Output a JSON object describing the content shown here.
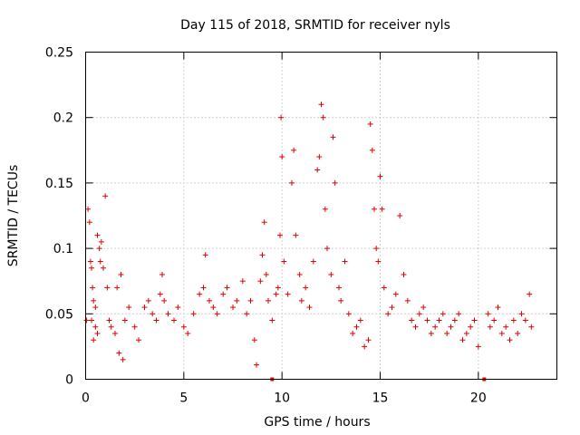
{
  "chart_data": {
    "type": "scatter",
    "title": "Day 115 of 2018, SRMTID for receiver nyls",
    "xlabel": "GPS time / hours",
    "ylabel": "SRMTID / TECUs",
    "xlim": [
      0,
      24
    ],
    "ylim": [
      0,
      0.25
    ],
    "xticks": [
      0,
      5,
      10,
      15,
      20
    ],
    "xtick_labels": [
      "0",
      "5",
      "10",
      "15",
      "20"
    ],
    "yticks": [
      0,
      0.05,
      0.1,
      0.15,
      0.2,
      0.25
    ],
    "ytick_labels": [
      "0",
      "0.05",
      "0.1",
      "0.15",
      "0.2",
      "0.25"
    ],
    "grid": true,
    "marker": "+",
    "color": "#e00000",
    "gap_markers_x": [
      9.5,
      20.3
    ],
    "series": [
      {
        "name": "SRMTID",
        "points": [
          [
            0.05,
            0.045
          ],
          [
            0.12,
            0.13
          ],
          [
            0.2,
            0.12
          ],
          [
            0.25,
            0.09
          ],
          [
            0.3,
            0.085
          ],
          [
            0.35,
            0.07
          ],
          [
            0.4,
            0.06
          ],
          [
            0.5,
            0.055
          ],
          [
            0.6,
            0.11
          ],
          [
            0.7,
            0.1
          ],
          [
            0.75,
            0.09
          ],
          [
            0.8,
            0.105
          ],
          [
            0.9,
            0.085
          ],
          [
            1.0,
            0.14
          ],
          [
            0.5,
            0.04
          ],
          [
            0.6,
            0.035
          ],
          [
            0.4,
            0.03
          ],
          [
            0.3,
            0.045
          ],
          [
            1.1,
            0.07
          ],
          [
            1.2,
            0.045
          ],
          [
            1.3,
            0.04
          ],
          [
            1.5,
            0.035
          ],
          [
            1.7,
            0.02
          ],
          [
            1.9,
            0.015
          ],
          [
            1.6,
            0.07
          ],
          [
            1.8,
            0.08
          ],
          [
            2.0,
            0.045
          ],
          [
            2.2,
            0.055
          ],
          [
            2.5,
            0.04
          ],
          [
            2.7,
            0.03
          ],
          [
            3.0,
            0.055
          ],
          [
            3.2,
            0.06
          ],
          [
            3.4,
            0.05
          ],
          [
            3.6,
            0.045
          ],
          [
            3.8,
            0.065
          ],
          [
            3.9,
            0.08
          ],
          [
            4.0,
            0.06
          ],
          [
            4.2,
            0.05
          ],
          [
            4.5,
            0.045
          ],
          [
            4.7,
            0.055
          ],
          [
            5.0,
            0.04
          ],
          [
            5.2,
            0.035
          ],
          [
            5.5,
            0.05
          ],
          [
            5.8,
            0.065
          ],
          [
            6.0,
            0.07
          ],
          [
            6.1,
            0.095
          ],
          [
            6.3,
            0.06
          ],
          [
            6.5,
            0.055
          ],
          [
            6.7,
            0.05
          ],
          [
            7.0,
            0.065
          ],
          [
            7.2,
            0.07
          ],
          [
            7.5,
            0.055
          ],
          [
            7.7,
            0.06
          ],
          [
            8.0,
            0.075
          ],
          [
            8.2,
            0.05
          ],
          [
            8.4,
            0.06
          ],
          [
            8.6,
            0.03
          ],
          [
            8.7,
            0.011
          ],
          [
            8.9,
            0.075
          ],
          [
            9.0,
            0.095
          ],
          [
            9.1,
            0.12
          ],
          [
            9.2,
            0.08
          ],
          [
            9.3,
            0.06
          ],
          [
            9.5,
            0.045
          ],
          [
            9.7,
            0.065
          ],
          [
            9.8,
            0.07
          ],
          [
            9.9,
            0.11
          ],
          [
            10.0,
            0.17
          ],
          [
            9.95,
            0.2
          ],
          [
            10.1,
            0.09
          ],
          [
            10.3,
            0.065
          ],
          [
            10.5,
            0.15
          ],
          [
            10.6,
            0.175
          ],
          [
            10.7,
            0.11
          ],
          [
            10.9,
            0.08
          ],
          [
            11.0,
            0.06
          ],
          [
            11.2,
            0.07
          ],
          [
            11.4,
            0.055
          ],
          [
            11.6,
            0.09
          ],
          [
            11.8,
            0.16
          ],
          [
            11.9,
            0.17
          ],
          [
            12.0,
            0.21
          ],
          [
            12.1,
            0.2
          ],
          [
            12.2,
            0.13
          ],
          [
            12.3,
            0.1
          ],
          [
            12.5,
            0.08
          ],
          [
            12.6,
            0.185
          ],
          [
            12.7,
            0.15
          ],
          [
            12.9,
            0.07
          ],
          [
            13.0,
            0.06
          ],
          [
            13.2,
            0.09
          ],
          [
            13.4,
            0.05
          ],
          [
            13.6,
            0.035
          ],
          [
            13.8,
            0.04
          ],
          [
            14.0,
            0.045
          ],
          [
            14.2,
            0.025
          ],
          [
            14.4,
            0.03
          ],
          [
            14.5,
            0.195
          ],
          [
            14.6,
            0.175
          ],
          [
            14.7,
            0.13
          ],
          [
            14.8,
            0.1
          ],
          [
            14.9,
            0.09
          ],
          [
            15.0,
            0.155
          ],
          [
            15.1,
            0.13
          ],
          [
            15.2,
            0.07
          ],
          [
            15.4,
            0.05
          ],
          [
            15.6,
            0.055
          ],
          [
            15.8,
            0.065
          ],
          [
            16.0,
            0.125
          ],
          [
            16.2,
            0.08
          ],
          [
            16.4,
            0.06
          ],
          [
            16.6,
            0.045
          ],
          [
            16.8,
            0.04
          ],
          [
            17.0,
            0.05
          ],
          [
            17.2,
            0.055
          ],
          [
            17.4,
            0.045
          ],
          [
            17.6,
            0.035
          ],
          [
            17.8,
            0.04
          ],
          [
            18.0,
            0.045
          ],
          [
            18.2,
            0.05
          ],
          [
            18.4,
            0.035
          ],
          [
            18.6,
            0.04
          ],
          [
            18.8,
            0.045
          ],
          [
            19.0,
            0.05
          ],
          [
            19.2,
            0.03
          ],
          [
            19.4,
            0.035
          ],
          [
            19.6,
            0.04
          ],
          [
            19.8,
            0.045
          ],
          [
            20.0,
            0.025
          ],
          [
            20.5,
            0.05
          ],
          [
            20.6,
            0.04
          ],
          [
            20.8,
            0.045
          ],
          [
            21.0,
            0.055
          ],
          [
            21.2,
            0.035
          ],
          [
            21.4,
            0.04
          ],
          [
            21.6,
            0.03
          ],
          [
            21.8,
            0.045
          ],
          [
            22.0,
            0.035
          ],
          [
            22.2,
            0.05
          ],
          [
            22.4,
            0.045
          ],
          [
            22.6,
            0.065
          ],
          [
            22.7,
            0.04
          ]
        ]
      }
    ]
  }
}
